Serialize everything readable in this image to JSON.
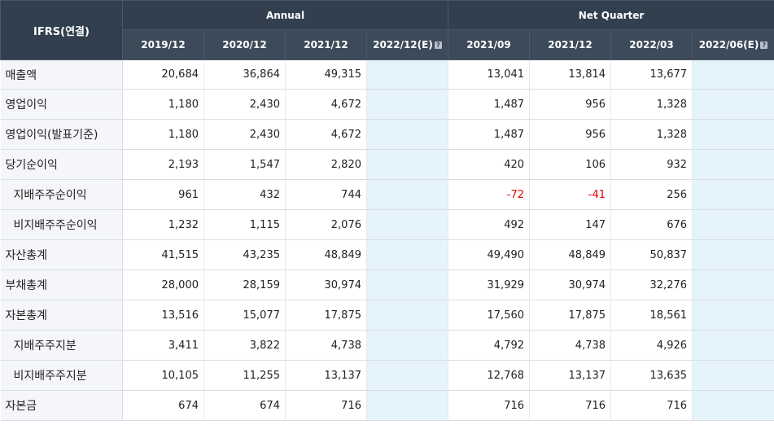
{
  "header": {
    "corner_label": "IFRS(연결)",
    "annual_label": "Annual",
    "quarter_label": "Net Quarter",
    "annual_periods": [
      "2019/12",
      "2020/12",
      "2021/12",
      "2022/12(E)"
    ],
    "quarter_periods": [
      "2021/09",
      "2021/12",
      "2022/03",
      "2022/06(E)"
    ],
    "help_icon": "question-mark-icon"
  },
  "rows": [
    {
      "label": "매출액",
      "indent": false,
      "annual": [
        "20,684",
        "36,864",
        "49,315",
        ""
      ],
      "quarter": [
        "13,041",
        "13,814",
        "13,677",
        ""
      ]
    },
    {
      "label": "영업이익",
      "indent": false,
      "annual": [
        "1,180",
        "2,430",
        "4,672",
        ""
      ],
      "quarter": [
        "1,487",
        "956",
        "1,328",
        ""
      ]
    },
    {
      "label": "영업이익(발표기준)",
      "indent": false,
      "annual": [
        "1,180",
        "2,430",
        "4,672",
        ""
      ],
      "quarter": [
        "1,487",
        "956",
        "1,328",
        ""
      ]
    },
    {
      "label": "당기순이익",
      "indent": false,
      "annual": [
        "2,193",
        "1,547",
        "2,820",
        ""
      ],
      "quarter": [
        "420",
        "106",
        "932",
        ""
      ]
    },
    {
      "label": "지배주주순이익",
      "indent": true,
      "annual": [
        "961",
        "432",
        "744",
        ""
      ],
      "quarter": [
        "-72",
        "-41",
        "256",
        ""
      ]
    },
    {
      "label": "비지배주주순이익",
      "indent": true,
      "annual": [
        "1,232",
        "1,115",
        "2,076",
        ""
      ],
      "quarter": [
        "492",
        "147",
        "676",
        ""
      ]
    },
    {
      "label": "자산총계",
      "indent": false,
      "annual": [
        "41,515",
        "43,235",
        "48,849",
        ""
      ],
      "quarter": [
        "49,490",
        "48,849",
        "50,837",
        ""
      ]
    },
    {
      "label": "부채총계",
      "indent": false,
      "annual": [
        "28,000",
        "28,159",
        "30,974",
        ""
      ],
      "quarter": [
        "31,929",
        "30,974",
        "32,276",
        ""
      ]
    },
    {
      "label": "자본총계",
      "indent": false,
      "annual": [
        "13,516",
        "15,077",
        "17,875",
        ""
      ],
      "quarter": [
        "17,560",
        "17,875",
        "18,561",
        ""
      ]
    },
    {
      "label": "지배주주지분",
      "indent": true,
      "annual": [
        "3,411",
        "3,822",
        "4,738",
        ""
      ],
      "quarter": [
        "4,792",
        "4,738",
        "4,926",
        ""
      ]
    },
    {
      "label": "비지배주주지분",
      "indent": true,
      "annual": [
        "10,105",
        "11,255",
        "13,137",
        ""
      ],
      "quarter": [
        "12,768",
        "13,137",
        "13,635",
        ""
      ]
    },
    {
      "label": "자본금",
      "indent": false,
      "annual": [
        "674",
        "674",
        "716",
        ""
      ],
      "quarter": [
        "716",
        "716",
        "716",
        ""
      ]
    }
  ],
  "colors": {
    "header_bg": "#313f4f",
    "estimate_bg": "#e5f3fa",
    "negative": "#e60000",
    "label_bg": "#f4f6f9"
  }
}
